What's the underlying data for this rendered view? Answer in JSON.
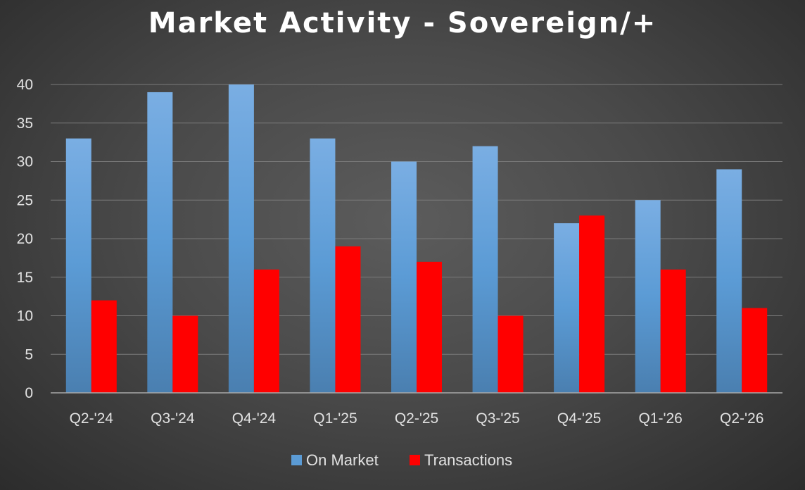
{
  "chart_data": {
    "type": "bar",
    "title": "Market Activity - Sovereign/+",
    "xlabel": "",
    "ylabel": "",
    "categories": [
      "Q2-'24",
      "Q3-'24",
      "Q4-'24",
      "Q1-'25",
      "Q2-'25",
      "Q3-'25",
      "Q4-'25",
      "Q1-'26",
      "Q2-'26"
    ],
    "series": [
      {
        "name": "On Market",
        "color": "#6a9fd8",
        "values": [
          33,
          39,
          40,
          33,
          30,
          32,
          22,
          25,
          29
        ]
      },
      {
        "name": "Transactions",
        "color": "#ff0000",
        "values": [
          12,
          10,
          16,
          19,
          17,
          10,
          23,
          16,
          11
        ]
      }
    ],
    "ylim": [
      0,
      40
    ],
    "yticks": [
      0,
      5,
      10,
      15,
      20,
      25,
      30,
      35,
      40
    ],
    "grid": true,
    "legend": "bottom-center"
  }
}
